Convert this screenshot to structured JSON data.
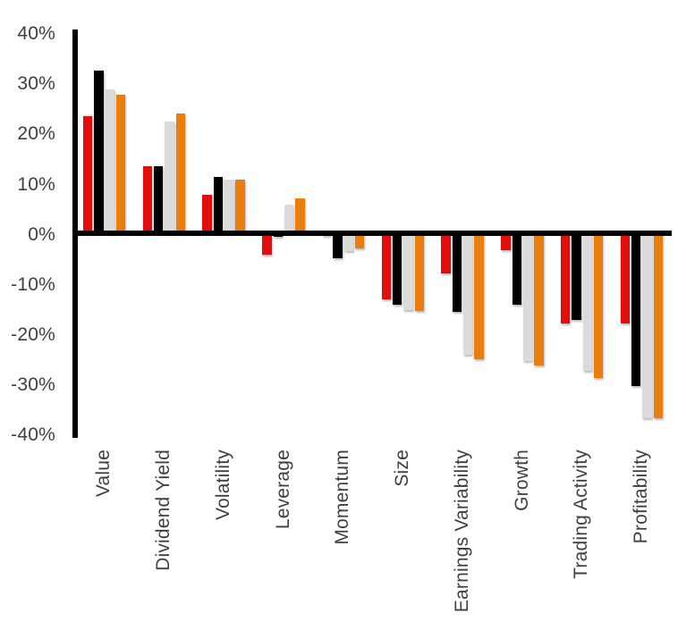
{
  "chart_data": {
    "type": "bar",
    "title": "",
    "xlabel": "",
    "ylabel": "",
    "categories": [
      "Value",
      "Dividend Yield",
      "Volatility",
      "Leverage",
      "Momentum",
      "Size",
      "Earnings Variability",
      "Growth",
      "Trading Activity",
      "Profitability"
    ],
    "series": [
      {
        "name": "series-1-red",
        "color": "#E20D0D",
        "values": [
          23.3,
          13.4,
          7.7,
          -4.2,
          -0.5,
          -13.2,
          -8.0,
          -3.3,
          -17.9,
          -17.9
        ]
      },
      {
        "name": "series-2-black",
        "color": "#000000",
        "values": [
          32.4,
          13.4,
          11.2,
          -0.8,
          -4.9,
          -14.2,
          -15.7,
          -14.2,
          -17.3,
          -30.4
        ]
      },
      {
        "name": "series-3-gray",
        "color": "#DBDBDB",
        "values": [
          28.6,
          22.3,
          10.7,
          5.7,
          -3.5,
          -15.3,
          -24.2,
          -25.4,
          -27.5,
          -36.9
        ]
      },
      {
        "name": "series-4-orange",
        "color": "#E97D0E",
        "values": [
          27.6,
          23.9,
          10.6,
          6.9,
          -3.1,
          -15.5,
          -25.1,
          -26.4,
          -28.9,
          -36.9
        ]
      }
    ],
    "ylim": [
      -40,
      40
    ],
    "ytick_step": 10,
    "ytick_labels": [
      "40%",
      "30%",
      "20%",
      "10%",
      "0%",
      "-10%",
      "-20%",
      "-30%",
      "-40%"
    ],
    "grid": false,
    "legend_position": "none",
    "axis_color": "#000000",
    "label_color": "#3F3F3F",
    "background_color": "#FFFFFF"
  }
}
